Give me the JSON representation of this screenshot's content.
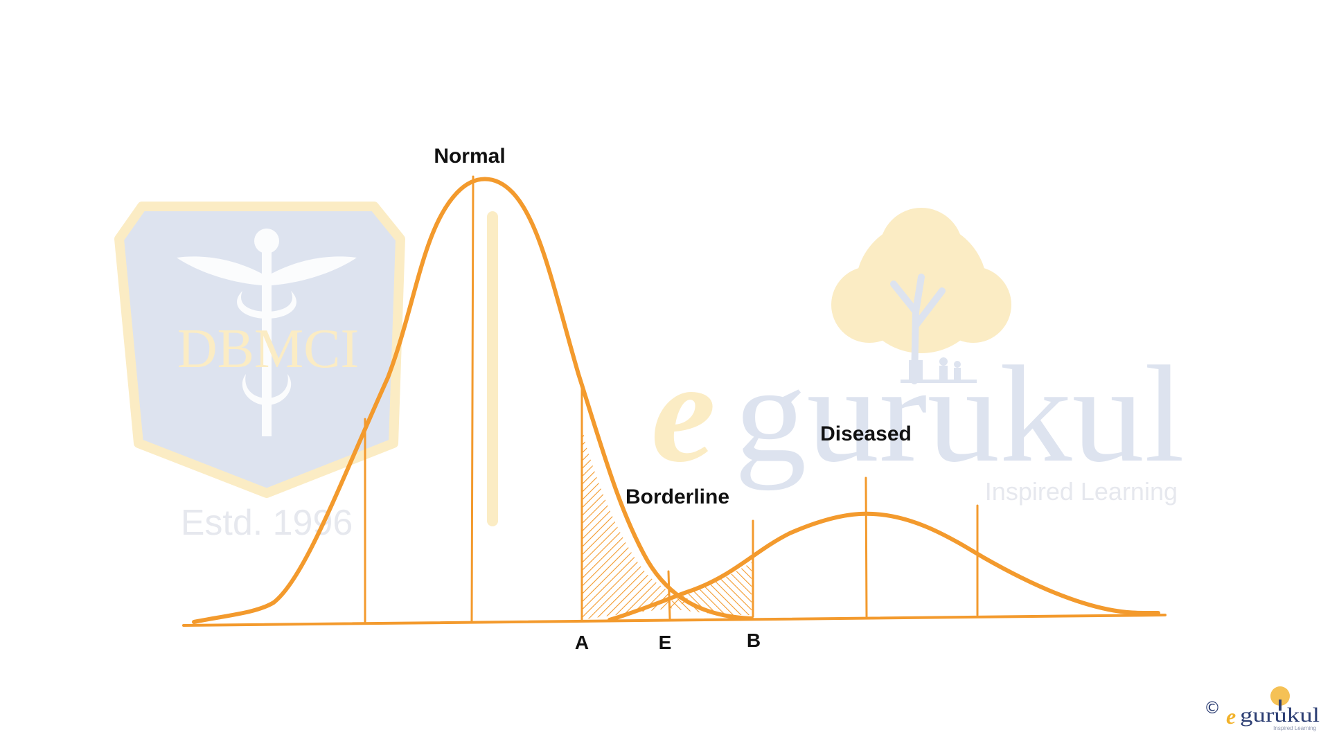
{
  "labels": {
    "normal": "Normal",
    "borderline": "Borderline",
    "diseased": "Diseased",
    "point_a": "A",
    "point_e": "E",
    "point_b": "B"
  },
  "watermark": {
    "dbmci_text": "DBMCI",
    "estd_text": "Estd. 1996",
    "brand_e": "e",
    "brand_rest": "gurukul",
    "tagline": "Inspired Learning"
  },
  "footer": {
    "copyright": "©",
    "logo_e": "e",
    "logo_rest": "gurukul",
    "logo_tagline": "Inspired Learning"
  },
  "colors": {
    "curve": "#f39a2d",
    "text": "#111111",
    "watermark_blue": "#dde3ef",
    "watermark_gold": "#fbecc4",
    "watermark_grey": "#e6e8ee",
    "logo_navy": "#2c3e73",
    "logo_gold": "#f2b22a"
  }
}
